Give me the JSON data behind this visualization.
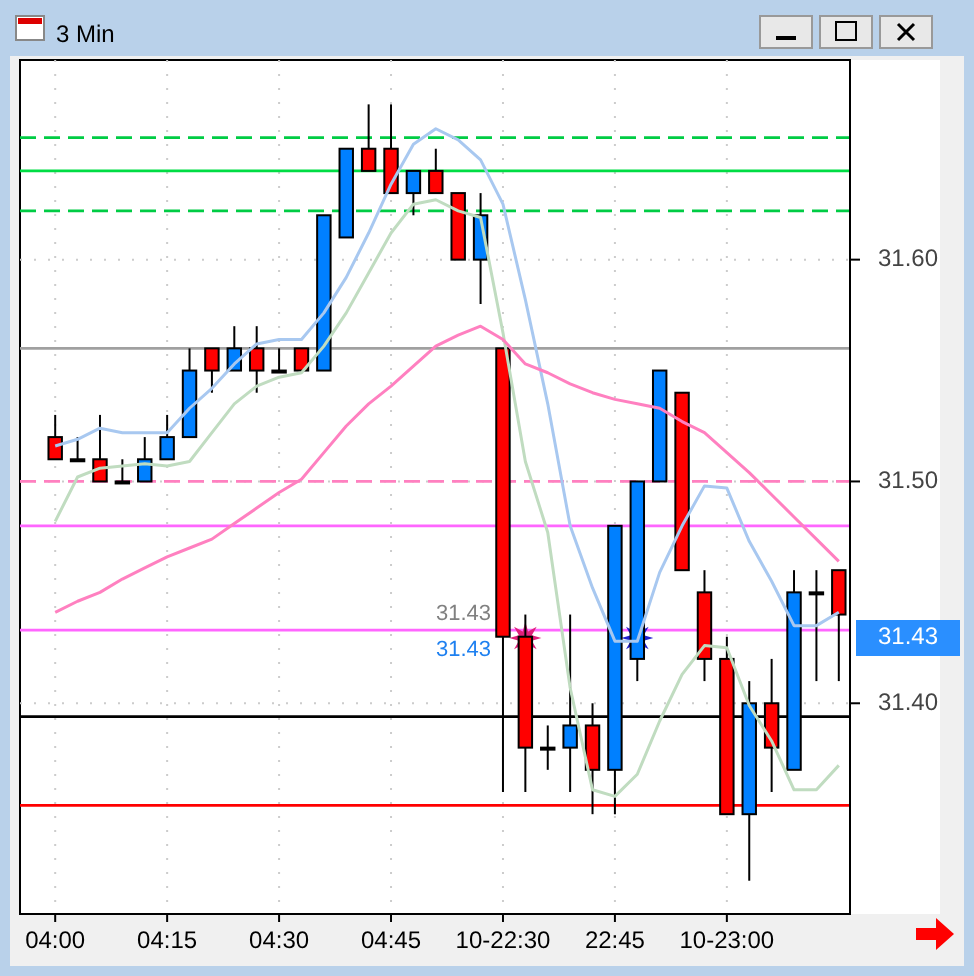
{
  "chart_data": {
    "type": "candlestick",
    "title": "3 Min",
    "categories": [
      "04:00",
      null,
      null,
      null,
      null,
      "04:15",
      null,
      null,
      null,
      null,
      "04:30",
      null,
      null,
      null,
      null,
      "04:45",
      null,
      null,
      null,
      null,
      "10-22:30",
      null,
      null,
      null,
      null,
      "22:45",
      null,
      null,
      null,
      null,
      "10-23:00",
      null,
      null,
      null,
      null,
      null
    ],
    "ohlc": [
      [
        31.52,
        31.53,
        31.51,
        31.51
      ],
      [
        31.51,
        31.52,
        31.51,
        31.51
      ],
      [
        31.51,
        31.53,
        31.5,
        31.5
      ],
      [
        31.5,
        31.51,
        31.5,
        31.5
      ],
      [
        31.5,
        31.52,
        31.5,
        31.51
      ],
      [
        31.51,
        31.53,
        31.51,
        31.52
      ],
      [
        31.52,
        31.56,
        31.52,
        31.55
      ],
      [
        31.56,
        31.56,
        31.54,
        31.55
      ],
      [
        31.55,
        31.57,
        31.55,
        31.56
      ],
      [
        31.56,
        31.57,
        31.54,
        31.55
      ],
      [
        31.55,
        31.56,
        31.55,
        31.55
      ],
      [
        31.56,
        31.56,
        31.55,
        31.55
      ],
      [
        31.55,
        31.62,
        31.55,
        31.62
      ],
      [
        31.61,
        31.65,
        31.61,
        31.65
      ],
      [
        31.65,
        31.67,
        31.64,
        31.64
      ],
      [
        31.65,
        31.67,
        31.63,
        31.63
      ],
      [
        31.63,
        31.64,
        31.62,
        31.64
      ],
      [
        31.64,
        31.65,
        31.63,
        31.63
      ],
      [
        31.63,
        31.63,
        31.6,
        31.6
      ],
      [
        31.6,
        31.63,
        31.58,
        31.62
      ],
      [
        31.56,
        31.56,
        31.36,
        31.43
      ],
      [
        31.43,
        31.44,
        31.36,
        31.38
      ],
      [
        31.38,
        31.39,
        31.37,
        31.38
      ],
      [
        31.38,
        31.44,
        31.36,
        31.39
      ],
      [
        31.39,
        31.4,
        31.35,
        31.37
      ],
      [
        31.37,
        31.48,
        31.35,
        31.48
      ],
      [
        31.42,
        31.5,
        31.41,
        31.5
      ],
      [
        31.5,
        31.55,
        31.5,
        31.55
      ],
      [
        31.54,
        31.54,
        31.46,
        31.46
      ],
      [
        31.45,
        31.46,
        31.41,
        31.42
      ],
      [
        31.42,
        31.43,
        31.35,
        31.35
      ],
      [
        31.35,
        31.41,
        31.32,
        31.4
      ],
      [
        31.4,
        31.42,
        31.36,
        31.38
      ],
      [
        31.37,
        31.46,
        31.37,
        31.45
      ],
      [
        31.45,
        31.46,
        31.41,
        31.45
      ],
      [
        31.46,
        31.46,
        31.41,
        31.44
      ]
    ],
    "colors": [
      "#ff0000",
      "#ff0000",
      "#ff0000",
      "#ff0000",
      "#0080ff",
      "#0080ff",
      "#0080ff",
      "#ff0000",
      "#0080ff",
      "#ff0000",
      "#ff0000",
      "#ff0000",
      "#0080ff",
      "#0080ff",
      "#ff0000",
      "#ff0000",
      "#0080ff",
      "#ff0000",
      "#ff0000",
      "#0080ff",
      "#ff0000",
      "#ff0000",
      "#ff0000",
      "#0080ff",
      "#ff0000",
      "#0080ff",
      "#0080ff",
      "#0080ff",
      "#ff0000",
      "#ff0000",
      "#ff0000",
      "#0080ff",
      "#ff0000",
      "#0080ff",
      "#ff0000",
      "#ff0000"
    ],
    "series": [
      {
        "type": "line",
        "color": "#a8c8f0",
        "values": [
          31.516,
          31.519,
          31.524,
          31.522,
          31.522,
          31.522,
          31.533,
          31.542,
          31.553,
          31.562,
          31.564,
          31.564,
          31.576,
          31.592,
          31.612,
          31.634,
          31.652,
          31.659,
          31.654,
          31.645,
          31.625,
          31.582,
          31.535,
          31.48,
          31.452,
          31.428,
          31.428,
          31.459,
          31.48,
          31.498,
          31.497,
          31.473,
          31.455,
          31.435,
          31.435,
          31.441
        ]
      },
      {
        "type": "line",
        "color": "#c0dcc0",
        "values": [
          31.482,
          31.502,
          31.506,
          31.507,
          31.508,
          31.507,
          31.509,
          31.522,
          31.535,
          31.543,
          31.547,
          31.549,
          31.561,
          31.576,
          31.594,
          31.612,
          31.625,
          31.627,
          31.622,
          31.619,
          31.567,
          31.509,
          31.477,
          31.407,
          31.361,
          31.358,
          31.368,
          31.392,
          31.413,
          31.426,
          31.425,
          31.399,
          31.383,
          31.361,
          31.361,
          31.372
        ]
      },
      {
        "type": "line",
        "color": "#ff80c0",
        "values": [
          31.441,
          31.446,
          31.45,
          31.456,
          31.461,
          31.466,
          31.47,
          31.474,
          31.481,
          31.488,
          31.495,
          31.501,
          31.513,
          31.525,
          31.535,
          31.543,
          31.552,
          31.561,
          31.566,
          31.57,
          31.564,
          31.553,
          31.549,
          31.544,
          31.54,
          31.537,
          31.535,
          31.533,
          31.527,
          31.522,
          31.513,
          31.504,
          31.494,
          31.484,
          31.474,
          31.464
        ]
      }
    ],
    "ylim": [
      31.305,
      31.69
    ],
    "yticks": [
      {
        "value": 31.4,
        "label": "31.40"
      },
      {
        "value": 31.5,
        "label": "31.50"
      },
      {
        "value": 31.6,
        "label": "31.60"
      }
    ],
    "ref_lines": [
      {
        "axis": "y",
        "value": 31.655,
        "color": "#00cc44",
        "line_style": "dashed"
      },
      {
        "axis": "y",
        "value": 31.64,
        "color": "#00dd44",
        "line_style": "solid"
      },
      {
        "axis": "y",
        "value": 31.622,
        "color": "#00cc44",
        "line_style": "dashed"
      },
      {
        "axis": "y",
        "value": 31.56,
        "color": "#a0a0a0",
        "line_style": "solid"
      },
      {
        "axis": "y",
        "value": 31.5,
        "color": "#ff80c0",
        "line_style": "dashed"
      },
      {
        "axis": "y",
        "value": 31.48,
        "color": "#ff66ff",
        "line_style": "solid"
      },
      {
        "axis": "y",
        "value": 31.433,
        "color": "#ff66ff",
        "line_style": "solid"
      },
      {
        "axis": "y",
        "value": 31.394,
        "color": "#000000",
        "line_style": "solid"
      },
      {
        "axis": "y",
        "value": 31.354,
        "color": "#ff0000",
        "line_style": "solid"
      }
    ],
    "annotations": [
      "31.43",
      "31.43",
      "31.43"
    ],
    "grid": true
  }
}
